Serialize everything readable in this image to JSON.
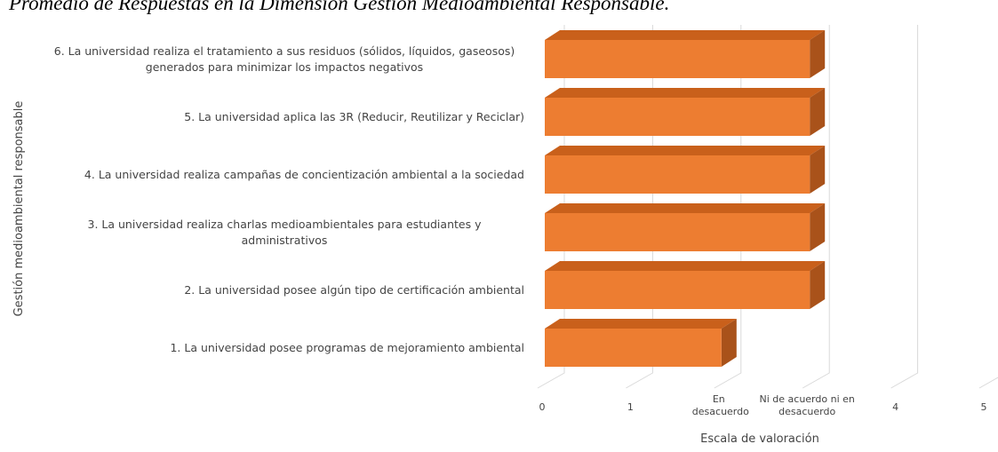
{
  "chart_data": {
    "type": "bar3d-horizontal",
    "title": "Promedio de Respuestas en la Dimensión Gestión Medioambiental Responsable.",
    "ylabel": "Gestión medioambiental responsable",
    "xlabel": "Escala de valoración",
    "categories": [
      "1. La universidad posee programas de mejoramiento ambiental",
      "2. La universidad posee algún tipo de certificación ambiental",
      "3. La universidad realiza charlas medioambientales para estudiantes y administrativos",
      "4. La universidad realiza campañas de concientización ambiental a la sociedad",
      "5. La universidad aplica las 3R (Reducir, Reutilizar y Reciclar)",
      "6. La universidad realiza el tratamiento a sus residuos (sólidos, líquidos, gaseosos) generados para minimizar los impactos negativos"
    ],
    "values": [
      2,
      3,
      3,
      3,
      3,
      3
    ],
    "color": "#ed7d31",
    "xlim": [
      0,
      5
    ],
    "xticks": [
      0,
      1,
      {
        "value": 2,
        "label": "En desacuerdo"
      },
      {
        "value": 3,
        "label": "Ni de acuerdo ni en desacuerdo"
      },
      4,
      5
    ],
    "grid": true
  }
}
